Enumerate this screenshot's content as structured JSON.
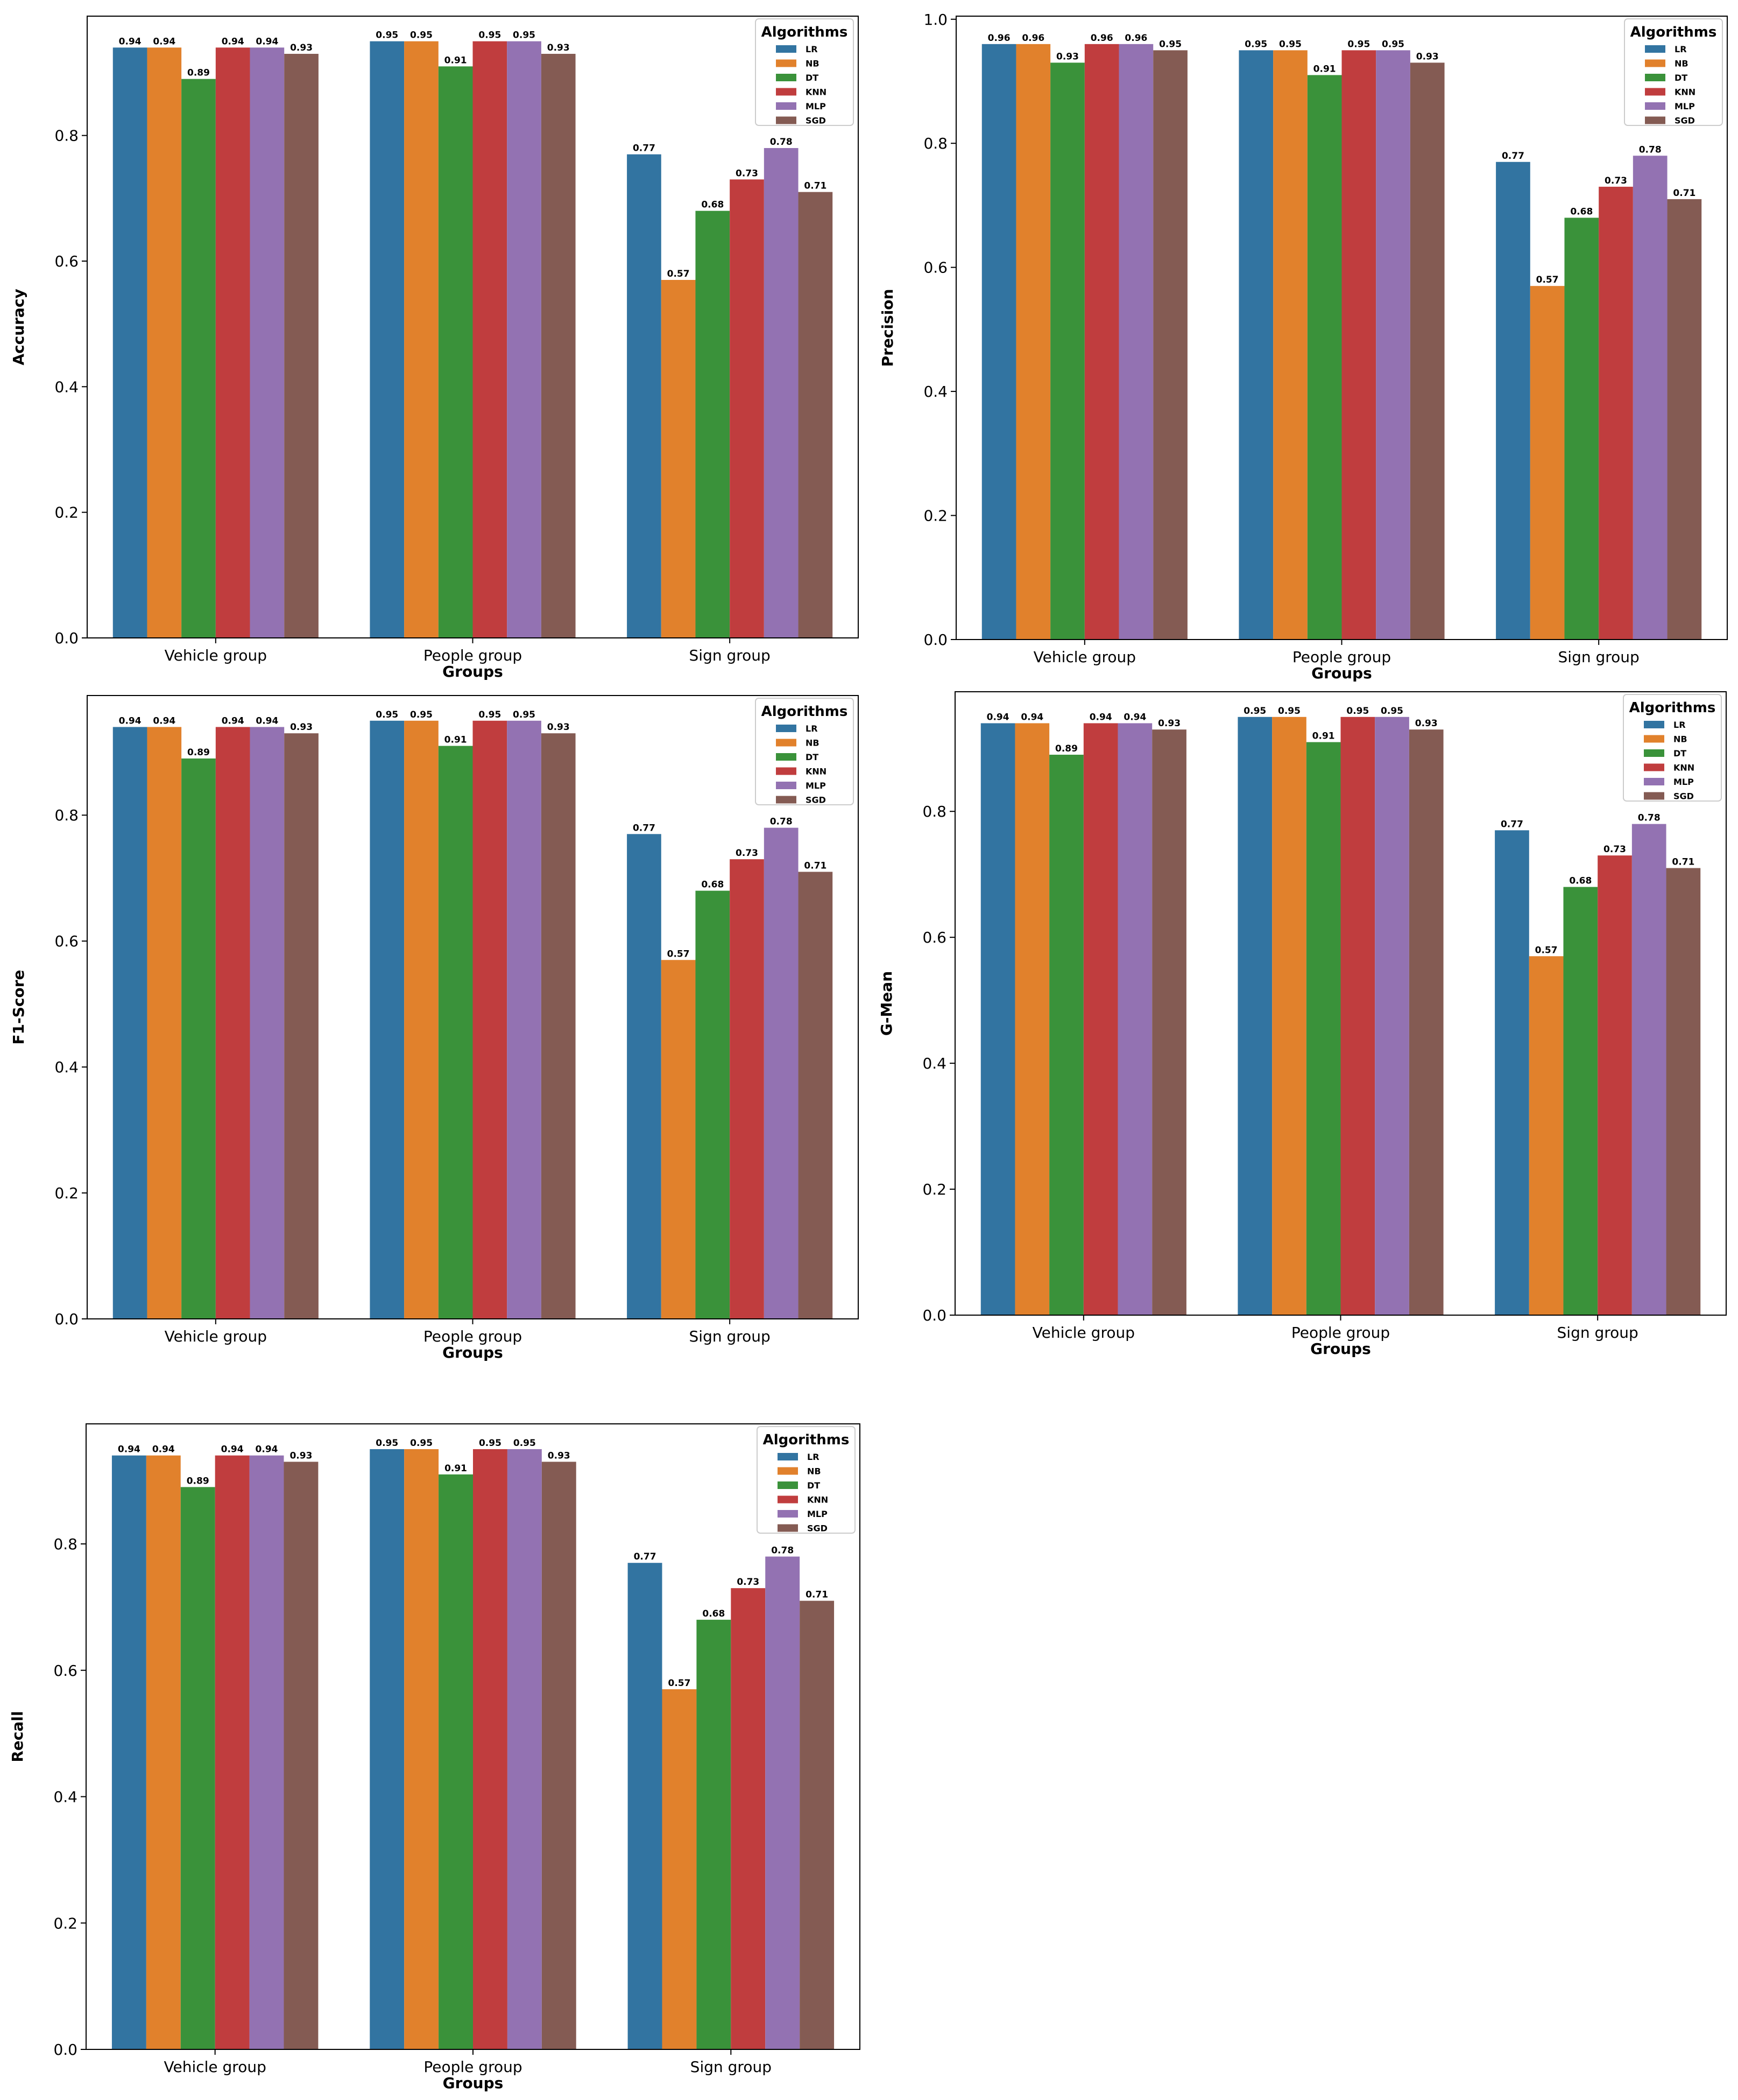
{
  "colors": {
    "LR": "#3274a1",
    "NB": "#e1812c",
    "DT": "#3a923a",
    "KNN": "#c03d3e",
    "MLP": "#9372b2",
    "SGD": "#845b53"
  },
  "legend_title": "Algorithms",
  "chart_data": [
    {
      "type": "bar",
      "title": "",
      "xlabel": "Groups",
      "ylabel": "Accuracy",
      "ylim": [
        0,
        0.99
      ],
      "yticks": [
        "0.0",
        "0.2",
        "0.4",
        "0.6",
        "0.8"
      ],
      "categories": [
        "Vehicle group",
        "People group",
        "Sign group"
      ],
      "legend_position": "top-right",
      "series": [
        {
          "name": "LR",
          "values": [
            0.94,
            0.95,
            0.77
          ]
        },
        {
          "name": "NB",
          "values": [
            0.94,
            0.95,
            0.57
          ]
        },
        {
          "name": "DT",
          "values": [
            0.89,
            0.91,
            0.68
          ]
        },
        {
          "name": "KNN",
          "values": [
            0.94,
            0.95,
            0.73
          ]
        },
        {
          "name": "MLP",
          "values": [
            0.94,
            0.95,
            0.78
          ]
        },
        {
          "name": "SGD",
          "values": [
            0.93,
            0.93,
            0.71
          ]
        }
      ]
    },
    {
      "type": "bar",
      "title": "",
      "xlabel": "Groups",
      "ylabel": "Precision",
      "ylim": [
        0,
        1.005
      ],
      "yticks": [
        "0.0",
        "0.2",
        "0.4",
        "0.6",
        "0.8",
        "1.0"
      ],
      "categories": [
        "Vehicle group",
        "People group",
        "Sign group"
      ],
      "legend_position": "top-right",
      "series": [
        {
          "name": "LR",
          "values": [
            0.96,
            0.95,
            0.77
          ]
        },
        {
          "name": "NB",
          "values": [
            0.96,
            0.95,
            0.57
          ]
        },
        {
          "name": "DT",
          "values": [
            0.93,
            0.91,
            0.68
          ]
        },
        {
          "name": "KNN",
          "values": [
            0.96,
            0.95,
            0.73
          ]
        },
        {
          "name": "MLP",
          "values": [
            0.96,
            0.95,
            0.78
          ]
        },
        {
          "name": "SGD",
          "values": [
            0.95,
            0.93,
            0.71
          ]
        }
      ]
    },
    {
      "type": "bar",
      "title": "",
      "xlabel": "Groups",
      "ylabel": "F1-Score",
      "ylim": [
        0,
        0.99
      ],
      "yticks": [
        "0.0",
        "0.2",
        "0.4",
        "0.6",
        "0.8"
      ],
      "categories": [
        "Vehicle group",
        "People group",
        "Sign group"
      ],
      "legend_position": "top-right",
      "series": [
        {
          "name": "LR",
          "values": [
            0.94,
            0.95,
            0.77
          ]
        },
        {
          "name": "NB",
          "values": [
            0.94,
            0.95,
            0.57
          ]
        },
        {
          "name": "DT",
          "values": [
            0.89,
            0.91,
            0.68
          ]
        },
        {
          "name": "KNN",
          "values": [
            0.94,
            0.95,
            0.73
          ]
        },
        {
          "name": "MLP",
          "values": [
            0.94,
            0.95,
            0.78
          ]
        },
        {
          "name": "SGD",
          "values": [
            0.93,
            0.93,
            0.71
          ]
        }
      ]
    },
    {
      "type": "bar",
      "title": "",
      "xlabel": "Groups",
      "ylabel": "G-Mean",
      "ylim": [
        0,
        0.99
      ],
      "yticks": [
        "0.0",
        "0.2",
        "0.4",
        "0.6",
        "0.8"
      ],
      "categories": [
        "Vehicle group",
        "People group",
        "Sign group"
      ],
      "legend_position": "top-right",
      "series": [
        {
          "name": "LR",
          "values": [
            0.94,
            0.95,
            0.77
          ]
        },
        {
          "name": "NB",
          "values": [
            0.94,
            0.95,
            0.57
          ]
        },
        {
          "name": "DT",
          "values": [
            0.89,
            0.91,
            0.68
          ]
        },
        {
          "name": "KNN",
          "values": [
            0.94,
            0.95,
            0.73
          ]
        },
        {
          "name": "MLP",
          "values": [
            0.94,
            0.95,
            0.78
          ]
        },
        {
          "name": "SGD",
          "values": [
            0.93,
            0.93,
            0.71
          ]
        }
      ]
    },
    {
      "type": "bar",
      "title": "",
      "xlabel": "Groups",
      "ylabel": "Recall",
      "ylim": [
        0,
        0.99
      ],
      "yticks": [
        "0.0",
        "0.2",
        "0.4",
        "0.6",
        "0.8"
      ],
      "categories": [
        "Vehicle group",
        "People group",
        "Sign group"
      ],
      "legend_position": "top-right",
      "series": [
        {
          "name": "LR",
          "values": [
            0.94,
            0.95,
            0.77
          ]
        },
        {
          "name": "NB",
          "values": [
            0.94,
            0.95,
            0.57
          ]
        },
        {
          "name": "DT",
          "values": [
            0.89,
            0.91,
            0.68
          ]
        },
        {
          "name": "KNN",
          "values": [
            0.94,
            0.95,
            0.73
          ]
        },
        {
          "name": "MLP",
          "values": [
            0.94,
            0.95,
            0.78
          ]
        },
        {
          "name": "SGD",
          "values": [
            0.93,
            0.93,
            0.71
          ]
        }
      ]
    }
  ]
}
